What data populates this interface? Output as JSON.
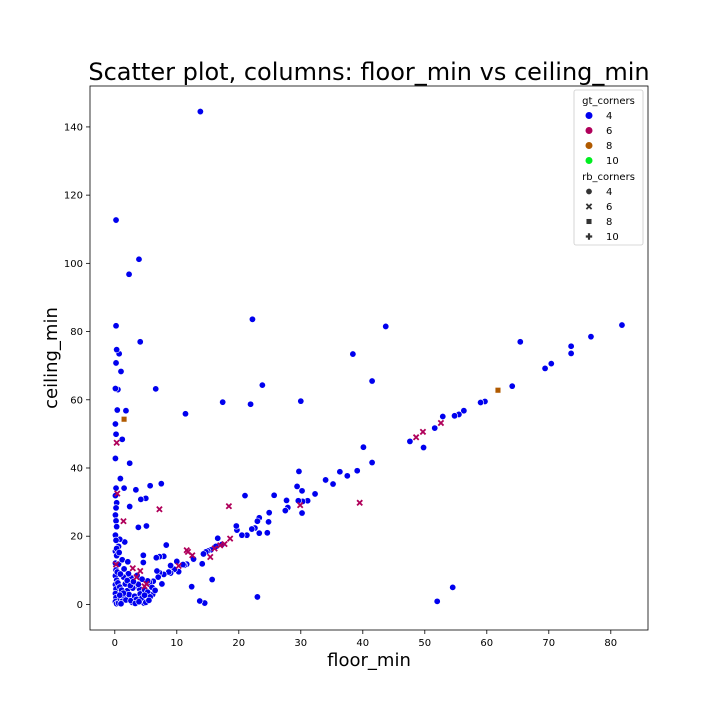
{
  "chart_data": {
    "type": "scatter",
    "title": "Scatter plot, columns: floor_min vs ceiling_min",
    "xlabel": "floor_min",
    "ylabel": "ceiling_min",
    "xlim": [
      -4,
      86
    ],
    "ylim": [
      -7.5,
      152
    ],
    "xticks": [
      0,
      10,
      20,
      30,
      40,
      50,
      60,
      70,
      80
    ],
    "yticks": [
      0,
      20,
      40,
      60,
      80,
      100,
      120,
      140
    ],
    "grid": false,
    "legend": {
      "placement": "top-right",
      "hue_title": "gt_corners",
      "hue_entries": [
        {
          "label": "4",
          "color": "#0000ee"
        },
        {
          "label": "6",
          "color": "#b0005a"
        },
        {
          "label": "8",
          "color": "#b05a00"
        },
        {
          "label": "10",
          "color": "#00ee20"
        }
      ],
      "style_title": "rb_corners",
      "style_entries": [
        {
          "label": "4",
          "marker": "circle"
        },
        {
          "label": "6",
          "marker": "x"
        },
        {
          "label": "8",
          "marker": "square"
        },
        {
          "label": "10",
          "marker": "plus"
        }
      ]
    },
    "series": [
      {
        "gt_corners": "4",
        "rb_corners": "4",
        "color": "#0000ee",
        "marker": "circle",
        "points": [
          [
            13.8,
            144.5
          ],
          [
            0.2,
            112.7
          ],
          [
            3.9,
            101.2
          ],
          [
            2.3,
            96.8
          ],
          [
            0.2,
            81.7
          ],
          [
            22.2,
            83.6
          ],
          [
            43.7,
            81.5
          ],
          [
            81.8,
            81.9
          ],
          [
            76.8,
            78.5
          ],
          [
            73.6,
            75.7
          ],
          [
            73.6,
            73.6
          ],
          [
            70.4,
            70.6
          ],
          [
            69.4,
            69.2
          ],
          [
            65.4,
            77.0
          ],
          [
            64.1,
            64.0
          ],
          [
            59.7,
            59.5
          ],
          [
            59.0,
            59.2
          ],
          [
            56.3,
            56.8
          ],
          [
            55.5,
            55.7
          ],
          [
            54.8,
            55.3
          ],
          [
            52.9,
            55.1
          ],
          [
            51.6,
            51.7
          ],
          [
            49.8,
            46.0
          ],
          [
            47.6,
            47.8
          ],
          [
            41.5,
            65.5
          ],
          [
            38.4,
            73.4
          ],
          [
            41.5,
            41.6
          ],
          [
            40.1,
            46.1
          ],
          [
            39.1,
            39.2
          ],
          [
            37.5,
            37.7
          ],
          [
            36.3,
            38.9
          ],
          [
            35.2,
            35.3
          ],
          [
            34.0,
            36.5
          ],
          [
            32.3,
            32.4
          ],
          [
            31.1,
            30.4
          ],
          [
            30.3,
            30.2
          ],
          [
            30.0,
            59.6
          ],
          [
            29.7,
            39.0
          ],
          [
            30.2,
            33.3
          ],
          [
            29.4,
            34.6
          ],
          [
            30.2,
            26.8
          ],
          [
            29.6,
            30.4
          ],
          [
            27.9,
            28.4
          ],
          [
            27.5,
            27.5
          ],
          [
            27.7,
            30.5
          ],
          [
            25.7,
            32.0
          ],
          [
            24.9,
            26.9
          ],
          [
            24.8,
            24.2
          ],
          [
            24.6,
            21.0
          ],
          [
            23.8,
            64.3
          ],
          [
            23.3,
            25.4
          ],
          [
            23.0,
            24.4
          ],
          [
            23.3,
            20.9
          ],
          [
            22.6,
            22.4
          ],
          [
            22.1,
            22.1
          ],
          [
            21.9,
            58.7
          ],
          [
            21.3,
            20.3
          ],
          [
            21.0,
            31.9
          ],
          [
            20.5,
            20.3
          ],
          [
            19.7,
            21.8
          ],
          [
            19.6,
            23.0
          ],
          [
            17.4,
            59.3
          ],
          [
            17.3,
            17.6
          ],
          [
            16.6,
            19.4
          ],
          [
            16.3,
            17.0
          ],
          [
            15.5,
            16.0
          ],
          [
            15.0,
            15.7
          ],
          [
            14.7,
            15.4
          ],
          [
            14.3,
            14.8
          ],
          [
            14.1,
            11.9
          ],
          [
            14.5,
            0.4
          ],
          [
            15.7,
            7.3
          ],
          [
            13.7,
            1.0
          ],
          [
            12.4,
            5.2
          ],
          [
            12.7,
            13.3
          ],
          [
            11.4,
            55.9
          ],
          [
            11.6,
            11.8
          ],
          [
            11.2,
            11.5
          ],
          [
            11.0,
            11.7
          ],
          [
            10.3,
            9.6
          ],
          [
            10.0,
            12.6
          ],
          [
            9.6,
            10.3
          ],
          [
            9.0,
            11.4
          ],
          [
            9.0,
            9.2
          ],
          [
            8.7,
            9.5
          ],
          [
            8.3,
            17.4
          ],
          [
            7.9,
            14.1
          ],
          [
            7.9,
            8.8
          ],
          [
            7.6,
            6.0
          ],
          [
            7.5,
            35.4
          ],
          [
            7.2,
            14.0
          ],
          [
            7.2,
            9.3
          ],
          [
            7.0,
            8.0
          ],
          [
            6.8,
            9.8
          ],
          [
            6.7,
            13.7
          ],
          [
            6.6,
            63.2
          ],
          [
            6.2,
            6.8
          ],
          [
            6.1,
            2.9
          ],
          [
            5.7,
            34.8
          ],
          [
            5.6,
            6.5
          ],
          [
            5.3,
            6.9
          ],
          [
            5.1,
            23.0
          ],
          [
            5.0,
            31.1
          ],
          [
            4.6,
            14.4
          ],
          [
            4.6,
            12.3
          ],
          [
            4.7,
            0.4
          ],
          [
            4.4,
            7.4
          ],
          [
            4.3,
            3.4
          ],
          [
            4.1,
            77.0
          ],
          [
            4.2,
            30.8
          ],
          [
            4.0,
            4.5
          ],
          [
            3.8,
            22.6
          ],
          [
            3.6,
            8.5
          ],
          [
            3.4,
            33.6
          ],
          [
            3.2,
            5.3
          ],
          [
            3.0,
            2.0
          ],
          [
            2.8,
            0.6
          ],
          [
            2.6,
            7.8
          ],
          [
            2.4,
            41.4
          ],
          [
            2.4,
            28.7
          ],
          [
            2.2,
            9.0
          ],
          [
            2.1,
            3.8
          ],
          [
            1.8,
            56.8
          ],
          [
            1.6,
            18.3
          ],
          [
            1.5,
            34.1
          ],
          [
            1.4,
            8.0
          ],
          [
            1.2,
            48.4
          ],
          [
            1.0,
            68.3
          ],
          [
            0.9,
            36.9
          ],
          [
            0.8,
            19.1
          ],
          [
            0.7,
            73.5
          ],
          [
            0.6,
            17.0
          ],
          [
            0.5,
            63.0
          ],
          [
            0.4,
            57.0
          ],
          [
            0.3,
            74.7
          ],
          [
            0.2,
            70.8
          ],
          [
            0.1,
            63.3
          ],
          [
            0.1,
            52.9
          ],
          [
            0.2,
            49.9
          ],
          [
            0.1,
            42.8
          ],
          [
            0.2,
            34.1
          ],
          [
            0.1,
            31.9
          ],
          [
            0.3,
            29.8
          ],
          [
            0.2,
            28.3
          ],
          [
            0.1,
            26.2
          ],
          [
            0.2,
            24.5
          ],
          [
            0.3,
            22.8
          ],
          [
            0.1,
            20.3
          ],
          [
            0.2,
            18.8
          ],
          [
            0.1,
            15.6
          ],
          [
            0.3,
            14.3
          ],
          [
            0.1,
            12.1
          ],
          [
            0.2,
            10.1
          ],
          [
            0.1,
            8.4
          ],
          [
            0.3,
            7.1
          ],
          [
            0.1,
            5.8
          ],
          [
            0.2,
            4.5
          ],
          [
            0.1,
            3.2
          ],
          [
            0.2,
            2.0
          ],
          [
            0.1,
            0.8
          ],
          [
            0.3,
            0.2
          ],
          [
            0.6,
            0.4
          ],
          [
            0.9,
            1.6
          ],
          [
            1.2,
            0.9
          ],
          [
            1.5,
            2.6
          ],
          [
            1.8,
            1.3
          ],
          [
            2.0,
            4.0
          ],
          [
            2.3,
            2.9
          ],
          [
            2.6,
            1.1
          ],
          [
            2.9,
            4.8
          ],
          [
            3.2,
            2.4
          ],
          [
            3.5,
            1.5
          ],
          [
            3.8,
            5.9
          ],
          [
            4.1,
            3.1
          ],
          [
            4.4,
            1.9
          ],
          [
            4.8,
            4.3
          ],
          [
            5.0,
            0.6
          ],
          [
            5.3,
            3.6
          ],
          [
            5.7,
            2.2
          ],
          [
            6.0,
            5.0
          ],
          [
            0.5,
            6.3
          ],
          [
            0.8,
            5.1
          ],
          [
            1.1,
            4.2
          ],
          [
            1.4,
            3.3
          ],
          [
            1.7,
            6.0
          ],
          [
            2.0,
            7.0
          ],
          [
            2.5,
            5.5
          ],
          [
            3.0,
            6.7
          ],
          [
            0.4,
            9.5
          ],
          [
            0.6,
            11.8
          ],
          [
            0.9,
            8.9
          ],
          [
            1.2,
            13.1
          ],
          [
            1.5,
            10.4
          ],
          [
            2.1,
            12.5
          ],
          [
            0.3,
            16.4
          ],
          [
            0.7,
            15.2
          ],
          [
            23.0,
            2.2
          ],
          [
            52.0,
            0.9
          ],
          [
            54.5,
            5.0
          ],
          [
            3.3,
            0.3
          ],
          [
            1.0,
            0.2
          ],
          [
            0.8,
            2.7
          ],
          [
            3.9,
            0.8
          ],
          [
            4.8,
            2.7
          ],
          [
            5.5,
            1.2
          ],
          [
            6.5,
            4.1
          ]
        ]
      },
      {
        "gt_corners": "6",
        "rb_corners": "6",
        "color": "#b0005a",
        "marker": "x",
        "points": [
          [
            0.3,
            47.4
          ],
          [
            0.4,
            32.5
          ],
          [
            1.4,
            24.4
          ],
          [
            0.2,
            11.7
          ],
          [
            2.9,
            10.6
          ],
          [
            3.5,
            8.0
          ],
          [
            4.1,
            9.8
          ],
          [
            4.8,
            5.3
          ],
          [
            5.1,
            6.0
          ],
          [
            7.2,
            27.9
          ],
          [
            10.3,
            11.3
          ],
          [
            11.8,
            15.4
          ],
          [
            15.4,
            13.9
          ],
          [
            16.1,
            16.4
          ],
          [
            17.0,
            17.3
          ],
          [
            17.7,
            17.7
          ],
          [
            18.4,
            28.8
          ],
          [
            18.6,
            19.3
          ],
          [
            29.9,
            29.1
          ],
          [
            39.5,
            29.8
          ],
          [
            48.6,
            49.0
          ],
          [
            49.7,
            50.6
          ],
          [
            52.6,
            53.2
          ],
          [
            11.6,
            15.9
          ],
          [
            12.5,
            14.4
          ]
        ]
      },
      {
        "gt_corners": "8",
        "rb_corners": "8",
        "color": "#b05a00",
        "marker": "square",
        "points": [
          [
            1.5,
            54.3
          ],
          [
            61.8,
            62.8
          ]
        ]
      }
    ]
  }
}
